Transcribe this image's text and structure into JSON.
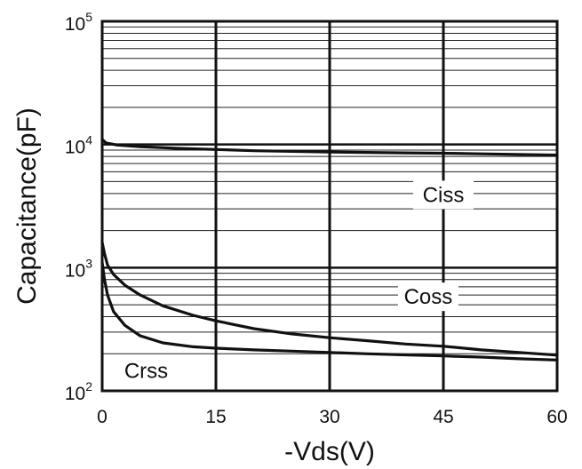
{
  "chart_data": {
    "type": "line",
    "title": "",
    "xlabel": "-Vds(V)",
    "ylabel": "Capacitance(pF)",
    "x_scale": "linear",
    "y_scale": "log",
    "xlim": [
      0,
      60
    ],
    "ylim": [
      100,
      100000
    ],
    "x_ticks": [
      0,
      15,
      30,
      45,
      60
    ],
    "x_tick_labels": [
      "0",
      "15",
      "30",
      "45",
      "60"
    ],
    "y_ticks": [
      100,
      1000,
      10000,
      100000
    ],
    "y_tick_labels": [
      {
        "base": "10",
        "exp": "2"
      },
      {
        "base": "10",
        "exp": "3"
      },
      {
        "base": "10",
        "exp": "4"
      },
      {
        "base": "10",
        "exp": "5"
      }
    ],
    "grid": {
      "x": true,
      "y": true,
      "y_minor": true
    },
    "legend": "none",
    "series": [
      {
        "name": "Ciss",
        "x": [
          0,
          0.5,
          2,
          5,
          10,
          15,
          20,
          30,
          40,
          45,
          50,
          60
        ],
        "y": [
          11000,
          10300,
          9900,
          9600,
          9300,
          9100,
          8900,
          8700,
          8550,
          8500,
          8400,
          8200
        ]
      },
      {
        "name": "Coss",
        "x": [
          0,
          0.3,
          0.7,
          1.5,
          3,
          5,
          8,
          12,
          15,
          20,
          25,
          30,
          35,
          40,
          45,
          50,
          55,
          60
        ],
        "y": [
          1600,
          1300,
          1050,
          880,
          720,
          600,
          490,
          410,
          370,
          320,
          290,
          270,
          255,
          240,
          230,
          215,
          205,
          195
        ]
      },
      {
        "name": "Crss",
        "x": [
          0,
          0.3,
          0.7,
          1.5,
          3,
          5,
          8,
          12,
          15,
          20,
          25,
          30,
          35,
          40,
          45,
          50,
          55,
          60
        ],
        "y": [
          1100,
          800,
          600,
          440,
          340,
          280,
          245,
          228,
          222,
          215,
          210,
          205,
          200,
          196,
          192,
          188,
          182,
          178
        ]
      }
    ]
  }
}
